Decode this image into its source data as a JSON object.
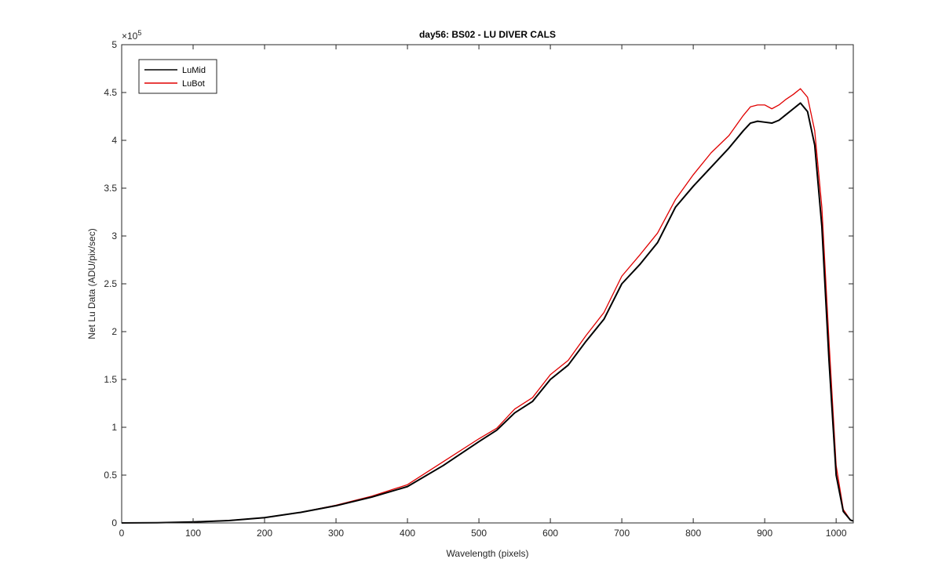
{
  "chart_data": {
    "type": "line",
    "title": "day56: BS02 - LU DIVER CALS",
    "xlabel": "Wavelength (pixels)",
    "ylabel": "Net Lu Data (ADU/pix/sec)",
    "xlim": [
      0,
      1024
    ],
    "ylim": [
      0,
      500000
    ],
    "y_exponent_label": "×10",
    "y_exponent_power": "5",
    "x_ticks": [
      0,
      100,
      200,
      300,
      400,
      500,
      600,
      700,
      800,
      900,
      1000
    ],
    "x_tick_labels": [
      "0",
      "100",
      "200",
      "300",
      "400",
      "500",
      "600",
      "700",
      "800",
      "900",
      "1000"
    ],
    "y_ticks": [
      0,
      50000,
      100000,
      150000,
      200000,
      250000,
      300000,
      350000,
      400000,
      450000,
      500000
    ],
    "y_tick_labels": [
      "0",
      "0.5",
      "1",
      "1.5",
      "2",
      "2.5",
      "3",
      "3.5",
      "4",
      "4.5",
      "5"
    ],
    "grid": false,
    "legend_position": "top-left",
    "x": [
      0,
      50,
      100,
      150,
      200,
      250,
      300,
      350,
      400,
      450,
      500,
      525,
      550,
      575,
      600,
      625,
      650,
      675,
      700,
      725,
      750,
      775,
      800,
      825,
      850,
      870,
      880,
      890,
      900,
      910,
      920,
      930,
      940,
      950,
      960,
      970,
      980,
      990,
      1000,
      1010,
      1020,
      1024
    ],
    "series": [
      {
        "name": "LuMid",
        "color": "#000000",
        "values": [
          0,
          200,
          1000,
          2500,
          5500,
          11000,
          18000,
          27000,
          38000,
          60000,
          85000,
          97000,
          115000,
          127000,
          150000,
          165000,
          190000,
          213000,
          250000,
          270000,
          293000,
          330000,
          352000,
          372000,
          392000,
          410000,
          418000,
          420000,
          419000,
          418000,
          421000,
          427000,
          433000,
          439000,
          430000,
          395000,
          310000,
          170000,
          50000,
          12000,
          3000,
          2000
        ]
      },
      {
        "name": "LuBot",
        "color": "#e00000",
        "values": [
          0,
          200,
          1000,
          2500,
          5500,
          11000,
          18500,
          28000,
          40000,
          64000,
          88000,
          99000,
          119000,
          131000,
          155000,
          170000,
          196000,
          220000,
          258000,
          280000,
          303000,
          338000,
          364000,
          387000,
          405000,
          426000,
          435000,
          437000,
          437000,
          433000,
          437000,
          443000,
          448000,
          454000,
          445000,
          410000,
          330000,
          190000,
          60000,
          14000,
          3000,
          2000
        ]
      }
    ]
  }
}
